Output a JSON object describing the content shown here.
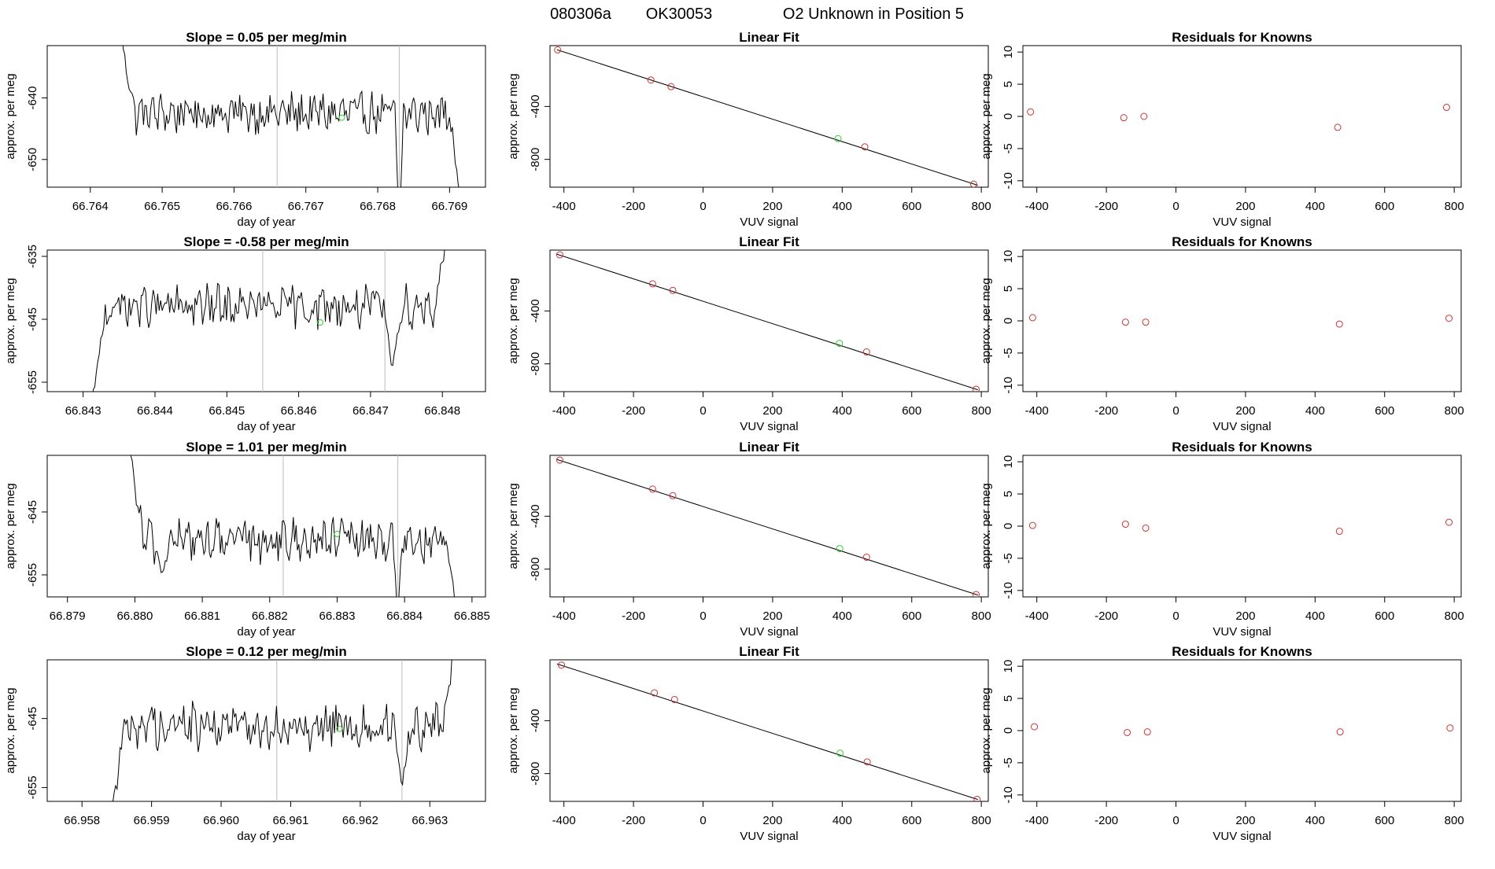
{
  "header": {
    "run_id": "080306a",
    "tank_id": "OK30053",
    "title": "O2 Unknown in Position  5"
  },
  "colors": {
    "trace": "#000000",
    "known": "#cc3333",
    "unknown": "#33cc33",
    "vline": "#bbbbbb",
    "axis": "#000000"
  },
  "chart_data": [
    {
      "row": 1,
      "col": 1,
      "type": "line",
      "title": "Slope =  0.05  per meg/min",
      "xlabel": "day of year",
      "ylabel": "approx. per meg",
      "xlim": [
        66.7634,
        66.7695
      ],
      "ylim": [
        -654.5,
        -631.5
      ],
      "xticks": [
        66.764,
        66.765,
        66.766,
        66.767,
        66.768,
        66.769
      ],
      "xtick_labels": [
        "66.764",
        "66.765",
        "66.766",
        "66.767",
        "66.768",
        "66.769"
      ],
      "yticks": [
        -640,
        -650
      ],
      "ytick_labels": [
        "-640",
        "-650"
      ],
      "vlines": [
        66.7666,
        66.7683
      ],
      "unknown_point": [
        66.7675,
        -643.2
      ],
      "trace": {
        "x0": 66.7644,
        "x1": 66.7692,
        "baseline": -642.5,
        "start": -628,
        "end": -660,
        "disruptions": [
          {
            "x": 66.7683,
            "value": -662,
            "width": 6e-05
          }
        ]
      }
    },
    {
      "row": 1,
      "col": 2,
      "type": "scatter",
      "title": "Linear Fit",
      "xlabel": "VUV signal",
      "ylabel": "approx. per meg",
      "xlim": [
        -440,
        820
      ],
      "ylim": [
        -1010,
        60
      ],
      "xticks": [
        -400,
        -200,
        0,
        200,
        400,
        600,
        800
      ],
      "xtick_labels": [
        "-400",
        "-200",
        "0",
        "200",
        "400",
        "600",
        "800"
      ],
      "yticks": [
        -400,
        -800
      ],
      "ytick_labels": [
        "-400",
        "-800"
      ],
      "fit_line": {
        "x": [
          -420,
          790
        ],
        "y": [
          29,
          -996
        ]
      },
      "knowns": {
        "x": [
          -418,
          -150,
          -92,
          465,
          778
        ],
        "y": [
          28,
          -200,
          -250,
          -705,
          -987
        ]
      },
      "unknown": {
        "x": [
          388
        ],
        "y": [
          -643
        ]
      }
    },
    {
      "row": 1,
      "col": 3,
      "type": "scatter",
      "title": "Residuals for Knowns",
      "xlabel": "VUV signal",
      "ylabel": "approx. per meg",
      "xlim": [
        -440,
        820
      ],
      "ylim": [
        -11,
        11
      ],
      "xticks": [
        -400,
        -200,
        0,
        200,
        400,
        600,
        800
      ],
      "xtick_labels": [
        "-400",
        "-200",
        "0",
        "200",
        "400",
        "600",
        "800"
      ],
      "yticks": [
        10,
        5,
        0,
        -5,
        -10
      ],
      "ytick_labels": [
        "10",
        "5",
        "0",
        "-5",
        "-10"
      ],
      "points": {
        "x": [
          -418,
          -150,
          -92,
          465,
          778
        ],
        "y": [
          0.7,
          -0.2,
          0.0,
          -1.7,
          1.4
        ]
      }
    },
    {
      "row": 2,
      "col": 1,
      "type": "line",
      "title": "Slope =  -0.58  per meg/min",
      "xlabel": "day of year",
      "ylabel": "approx. per meg",
      "xlim": [
        66.8425,
        66.8486
      ],
      "ylim": [
        -656.5,
        -634
      ],
      "xticks": [
        66.843,
        66.844,
        66.845,
        66.846,
        66.847,
        66.848
      ],
      "xtick_labels": [
        "66.843",
        "66.844",
        "66.845",
        "66.846",
        "66.847",
        "66.848"
      ],
      "yticks": [
        -635,
        -645,
        -655
      ],
      "ytick_labels": [
        "-635",
        "-645",
        "-655"
      ],
      "vlines": [
        66.8455,
        66.8472
      ],
      "unknown_point": [
        66.8463,
        -645.5
      ],
      "trace": {
        "x0": 66.8431,
        "x1": 66.8481,
        "baseline": -643,
        "start": -660,
        "end": -628,
        "disruptions": [
          {
            "x": 66.8473,
            "value": -653,
            "width": 0.00012
          }
        ]
      }
    },
    {
      "row": 2,
      "col": 2,
      "type": "scatter",
      "title": "Linear Fit",
      "xlabel": "VUV signal",
      "ylabel": "approx. per meg",
      "xlim": [
        -440,
        820
      ],
      "ylim": [
        -1010,
        60
      ],
      "xticks": [
        -400,
        -200,
        0,
        200,
        400,
        600,
        800
      ],
      "xtick_labels": [
        "-400",
        "-200",
        "0",
        "200",
        "400",
        "600",
        "800"
      ],
      "yticks": [
        -400,
        -800
      ],
      "ytick_labels": [
        "-400",
        "-800"
      ],
      "fit_line": {
        "x": [
          -420,
          790
        ],
        "y": [
          29,
          -996
        ]
      },
      "knowns": {
        "x": [
          -412,
          -145,
          -87,
          470,
          785
        ],
        "y": [
          24,
          -195,
          -245,
          -710,
          -992
        ]
      },
      "unknown": {
        "x": [
          392
        ],
        "y": [
          -645
        ]
      }
    },
    {
      "row": 2,
      "col": 3,
      "type": "scatter",
      "title": "Residuals for Knowns",
      "xlabel": "VUV signal",
      "ylabel": "approx. per meg",
      "xlim": [
        -440,
        820
      ],
      "ylim": [
        -11,
        11
      ],
      "xticks": [
        -400,
        -200,
        0,
        200,
        400,
        600,
        800
      ],
      "xtick_labels": [
        "-400",
        "-200",
        "0",
        "200",
        "400",
        "600",
        "800"
      ],
      "yticks": [
        10,
        5,
        0,
        -5,
        -10
      ],
      "ytick_labels": [
        "10",
        "5",
        "0",
        "-5",
        "-10"
      ],
      "points": {
        "x": [
          -412,
          -145,
          -87,
          470,
          785
        ],
        "y": [
          0.5,
          -0.2,
          -0.2,
          -0.5,
          0.4
        ]
      }
    },
    {
      "row": 3,
      "col": 1,
      "type": "line",
      "title": "Slope =  1.01  per meg/min",
      "xlabel": "day of year",
      "ylabel": "approx. per meg",
      "xlim": [
        66.8787,
        66.8852
      ],
      "ylim": [
        -658.5,
        -636
      ],
      "xticks": [
        66.879,
        66.88,
        66.881,
        66.882,
        66.883,
        66.884,
        66.885
      ],
      "xtick_labels": [
        "66.879",
        "66.880",
        "66.881",
        "66.882",
        "66.883",
        "66.884",
        "66.885"
      ],
      "yticks": [
        -645,
        -655
      ],
      "ytick_labels": [
        "-645",
        "-655"
      ],
      "vlines": [
        66.8822,
        66.8839
      ],
      "unknown_point": [
        66.883,
        -648.5
      ],
      "trace": {
        "x0": 66.8799,
        "x1": 66.8848,
        "baseline": -649.5,
        "start": -633,
        "end": -662,
        "disruptions": [
          {
            "x": 66.8804,
            "value": -655,
            "width": 0.00012
          },
          {
            "x": 66.8839,
            "value": -662,
            "width": 6e-05
          }
        ]
      }
    },
    {
      "row": 3,
      "col": 2,
      "type": "scatter",
      "title": "Linear Fit",
      "xlabel": "VUV signal",
      "ylabel": "approx. per meg",
      "xlim": [
        -440,
        820
      ],
      "ylim": [
        -1010,
        60
      ],
      "xticks": [
        -400,
        -200,
        0,
        200,
        400,
        600,
        800
      ],
      "xtick_labels": [
        "-400",
        "-200",
        "0",
        "200",
        "400",
        "600",
        "800"
      ],
      "yticks": [
        -400,
        -800
      ],
      "ytick_labels": [
        "-400",
        "-800"
      ],
      "fit_line": {
        "x": [
          -420,
          790
        ],
        "y": [
          29,
          -996
        ]
      },
      "knowns": {
        "x": [
          -412,
          -145,
          -87,
          470,
          785
        ],
        "y": [
          24,
          -195,
          -245,
          -710,
          -992
        ]
      },
      "unknown": {
        "x": [
          393
        ],
        "y": [
          -645
        ]
      }
    },
    {
      "row": 3,
      "col": 3,
      "type": "scatter",
      "title": "Residuals for Knowns",
      "xlabel": "VUV signal",
      "ylabel": "approx. per meg",
      "xlim": [
        -440,
        820
      ],
      "ylim": [
        -11,
        11
      ],
      "xticks": [
        -400,
        -200,
        0,
        200,
        400,
        600,
        800
      ],
      "xtick_labels": [
        "-400",
        "-200",
        "0",
        "200",
        "400",
        "600",
        "800"
      ],
      "yticks": [
        10,
        5,
        0,
        -5,
        -10
      ],
      "ytick_labels": [
        "10",
        "5",
        "0",
        "-5",
        "-10"
      ],
      "points": {
        "x": [
          -412,
          -145,
          -87,
          470,
          785
        ],
        "y": [
          0.1,
          0.3,
          -0.3,
          -0.8,
          0.6
        ]
      }
    },
    {
      "row": 4,
      "col": 1,
      "type": "line",
      "title": "Slope =  0.12  per meg/min",
      "xlabel": "day of year",
      "ylabel": "approx. per meg",
      "xlim": [
        66.9575,
        66.9638
      ],
      "ylim": [
        -657,
        -636.5
      ],
      "xticks": [
        66.958,
        66.959,
        66.96,
        66.961,
        66.962,
        66.963
      ],
      "xtick_labels": [
        "66.958",
        "66.959",
        "66.960",
        "66.961",
        "66.962",
        "66.963"
      ],
      "yticks": [
        -645,
        -655
      ],
      "ytick_labels": [
        "-645",
        "-655"
      ],
      "vlines": [
        66.9608,
        66.9626
      ],
      "unknown_point": [
        66.9617,
        -646.5
      ],
      "trace": {
        "x0": 66.9584,
        "x1": 66.9634,
        "baseline": -646,
        "start": -660,
        "end": -630,
        "disruptions": [
          {
            "x": 66.9626,
            "value": -655,
            "width": 0.00012
          }
        ]
      }
    },
    {
      "row": 4,
      "col": 2,
      "type": "scatter",
      "title": "Linear Fit",
      "xlabel": "VUV signal",
      "ylabel": "approx. per meg",
      "xlim": [
        -440,
        820
      ],
      "ylim": [
        -1010,
        60
      ],
      "xticks": [
        -400,
        -200,
        0,
        200,
        400,
        600,
        800
      ],
      "xtick_labels": [
        "-400",
        "-200",
        "0",
        "200",
        "400",
        "600",
        "800"
      ],
      "yticks": [
        -400,
        -800
      ],
      "ytick_labels": [
        "-400",
        "-800"
      ],
      "fit_line": {
        "x": [
          -420,
          790
        ],
        "y": [
          29,
          -996
        ]
      },
      "knowns": {
        "x": [
          -407,
          -140,
          -82,
          472,
          788
        ],
        "y": [
          20,
          -190,
          -240,
          -712,
          -995
        ]
      },
      "unknown": {
        "x": [
          394
        ],
        "y": [
          -646
        ]
      }
    },
    {
      "row": 4,
      "col": 3,
      "type": "scatter",
      "title": "Residuals for Knowns",
      "xlabel": "VUV signal",
      "ylabel": "approx. per meg",
      "xlim": [
        -440,
        820
      ],
      "ylim": [
        -11,
        11
      ],
      "xticks": [
        -400,
        -200,
        0,
        200,
        400,
        600,
        800
      ],
      "xtick_labels": [
        "-400",
        "-200",
        "0",
        "200",
        "400",
        "600",
        "800"
      ],
      "yticks": [
        10,
        5,
        0,
        -5,
        -10
      ],
      "ytick_labels": [
        "10",
        "5",
        "0",
        "-5",
        "-10"
      ],
      "points": {
        "x": [
          -407,
          -140,
          -82,
          472,
          788
        ],
        "y": [
          0.6,
          -0.3,
          -0.2,
          -0.2,
          0.4
        ]
      }
    }
  ]
}
